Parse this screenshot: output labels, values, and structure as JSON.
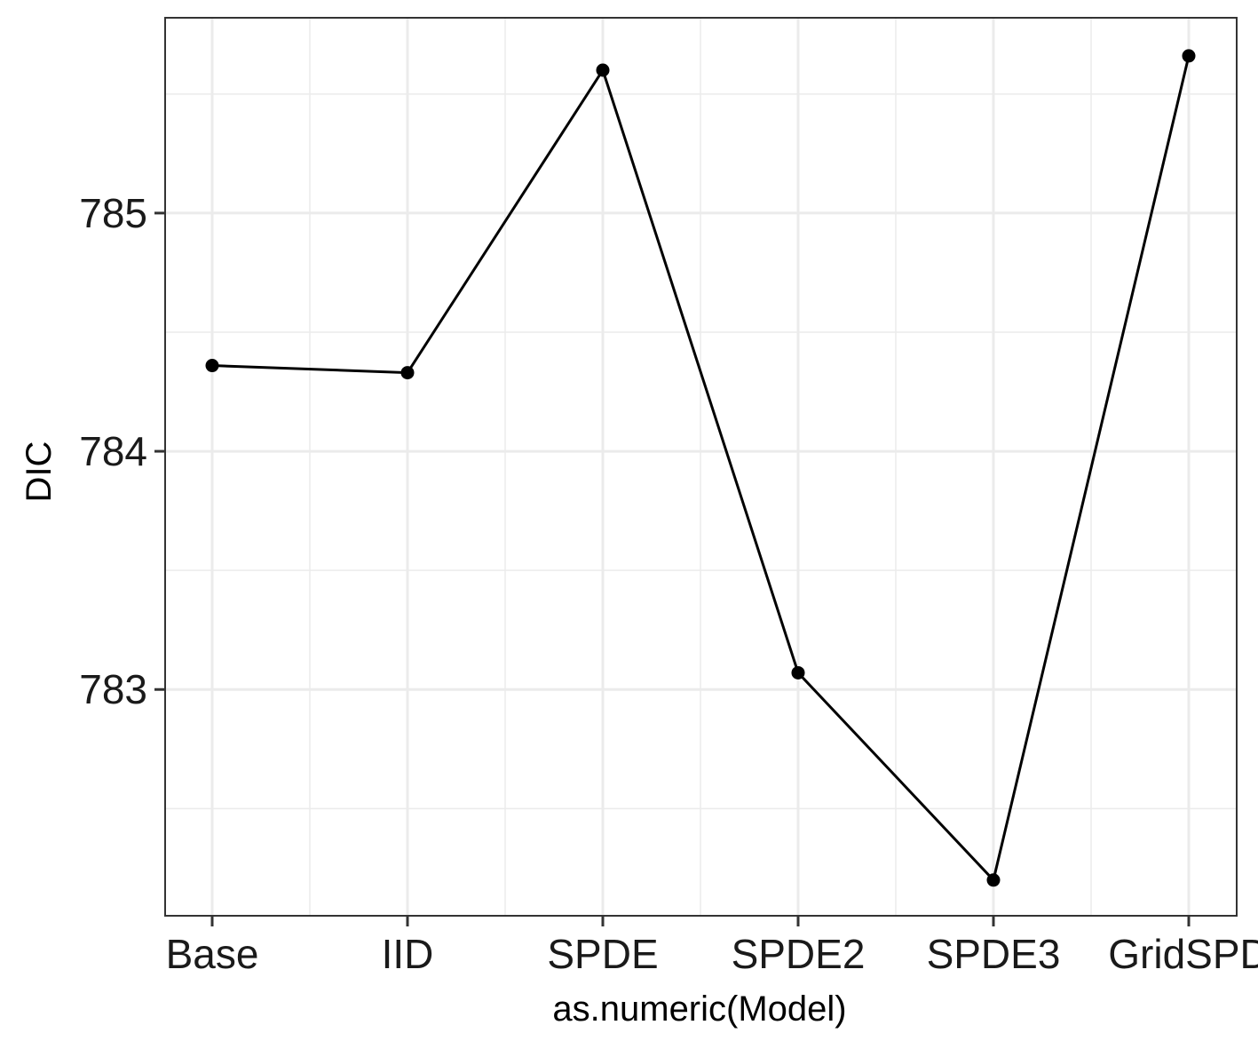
{
  "chart_data": {
    "type": "line",
    "categories": [
      "Base",
      "IID",
      "SPDE",
      "SPDE2",
      "SPDE3",
      "GridSPDE"
    ],
    "visible_tick_labels": [
      "Base",
      "IID",
      "SPDE",
      "SPDE2",
      "SPDE3",
      "GridSPD"
    ],
    "series": [
      {
        "values": [
          784.36,
          784.33,
          785.6,
          783.07,
          782.2,
          785.66
        ]
      }
    ],
    "xlabel": "as.numeric(Model)",
    "ylabel": "DIC",
    "ylim": [
      782.05,
      785.82
    ],
    "yticks": [
      783,
      784,
      785
    ],
    "ytick_labels": [
      "783",
      "784",
      "785"
    ],
    "grid": true,
    "line_color": "#000000",
    "point_color": "#000000",
    "grid_color": "#ebebeb",
    "panel_border_color": "#333333"
  }
}
